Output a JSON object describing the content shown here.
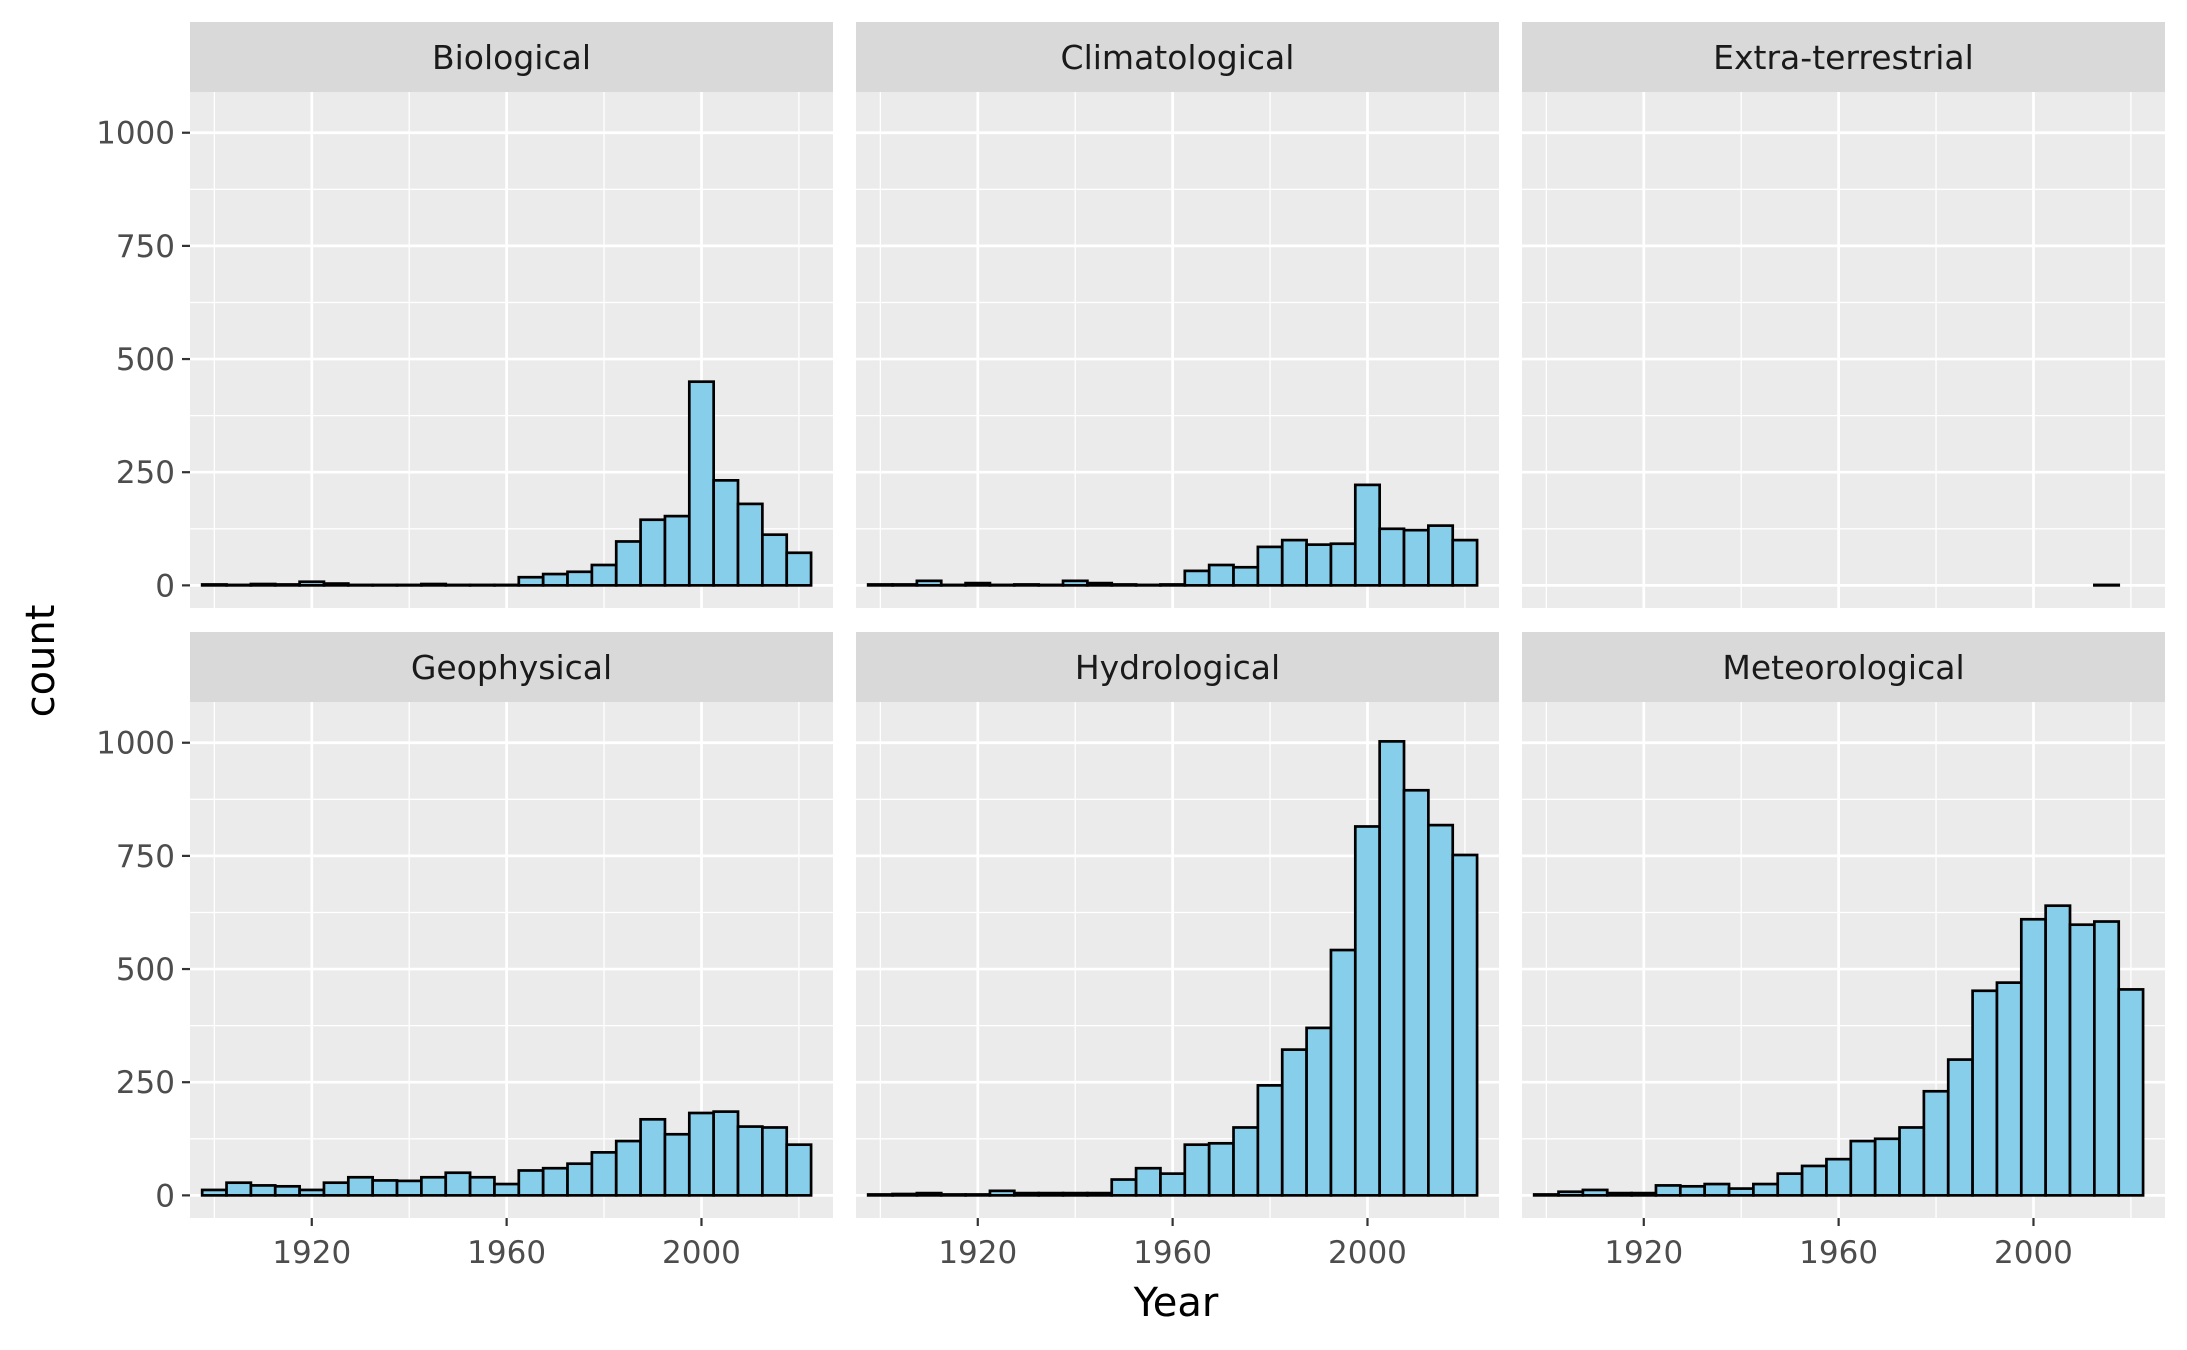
{
  "chart_data": {
    "type": "bar",
    "xlabel": "Year",
    "ylabel": "count",
    "xlim": [
      1895,
      2027
    ],
    "ylim": [
      -50,
      1090
    ],
    "x_ticks": [
      "1920",
      "1960",
      "2000"
    ],
    "y_ticks": [
      "0",
      "250",
      "500",
      "750",
      "1000"
    ],
    "bin_width": 5,
    "bin_starts": [
      1897.5,
      1902.5,
      1907.5,
      1912.5,
      1917.5,
      1922.5,
      1927.5,
      1932.5,
      1937.5,
      1942.5,
      1947.5,
      1952.5,
      1957.5,
      1962.5,
      1967.5,
      1972.5,
      1977.5,
      1982.5,
      1987.5,
      1992.5,
      1997.5,
      2002.5,
      2007.5,
      2012.5,
      2017.5
    ],
    "facets": [
      {
        "name": "Biological",
        "values": [
          2,
          1,
          3,
          2,
          8,
          4,
          1,
          1,
          1,
          3,
          1,
          1,
          1,
          18,
          25,
          30,
          45,
          97,
          145,
          153,
          450,
          232,
          180,
          112,
          72
        ]
      },
      {
        "name": "Climatological",
        "values": [
          2,
          2,
          10,
          1,
          5,
          1,
          2,
          1,
          10,
          5,
          2,
          1,
          2,
          32,
          45,
          40,
          85,
          100,
          90,
          92,
          222,
          125,
          122,
          132,
          100
        ]
      },
      {
        "name": "Extra-terrestrial",
        "values": [
          0,
          0,
          0,
          0,
          0,
          0,
          0,
          0,
          0,
          0,
          0,
          0,
          0,
          0,
          0,
          0,
          0,
          0,
          0,
          0,
          0,
          0,
          0,
          1,
          0
        ]
      },
      {
        "name": "Geophysical",
        "values": [
          12,
          28,
          22,
          20,
          12,
          28,
          40,
          33,
          32,
          40,
          50,
          40,
          25,
          55,
          60,
          70,
          95,
          120,
          168,
          135,
          182,
          185,
          152,
          150,
          112
        ]
      },
      {
        "name": "Hydrological",
        "values": [
          2,
          3,
          5,
          2,
          2,
          10,
          5,
          5,
          5,
          5,
          35,
          60,
          48,
          112,
          115,
          150,
          243,
          322,
          370,
          542,
          815,
          1003,
          895,
          818,
          752
        ]
      },
      {
        "name": "Meteorological",
        "values": [
          2,
          8,
          12,
          5,
          5,
          22,
          20,
          25,
          15,
          25,
          48,
          65,
          80,
          120,
          125,
          150,
          230,
          300,
          452,
          470,
          610,
          640,
          598,
          605,
          455
        ]
      }
    ],
    "colors": {
      "fill": "#87ceeb",
      "stroke": "#000000",
      "panel": "#ebebeb",
      "grid": "#ffffff",
      "strip": "#d9d9d9"
    }
  }
}
